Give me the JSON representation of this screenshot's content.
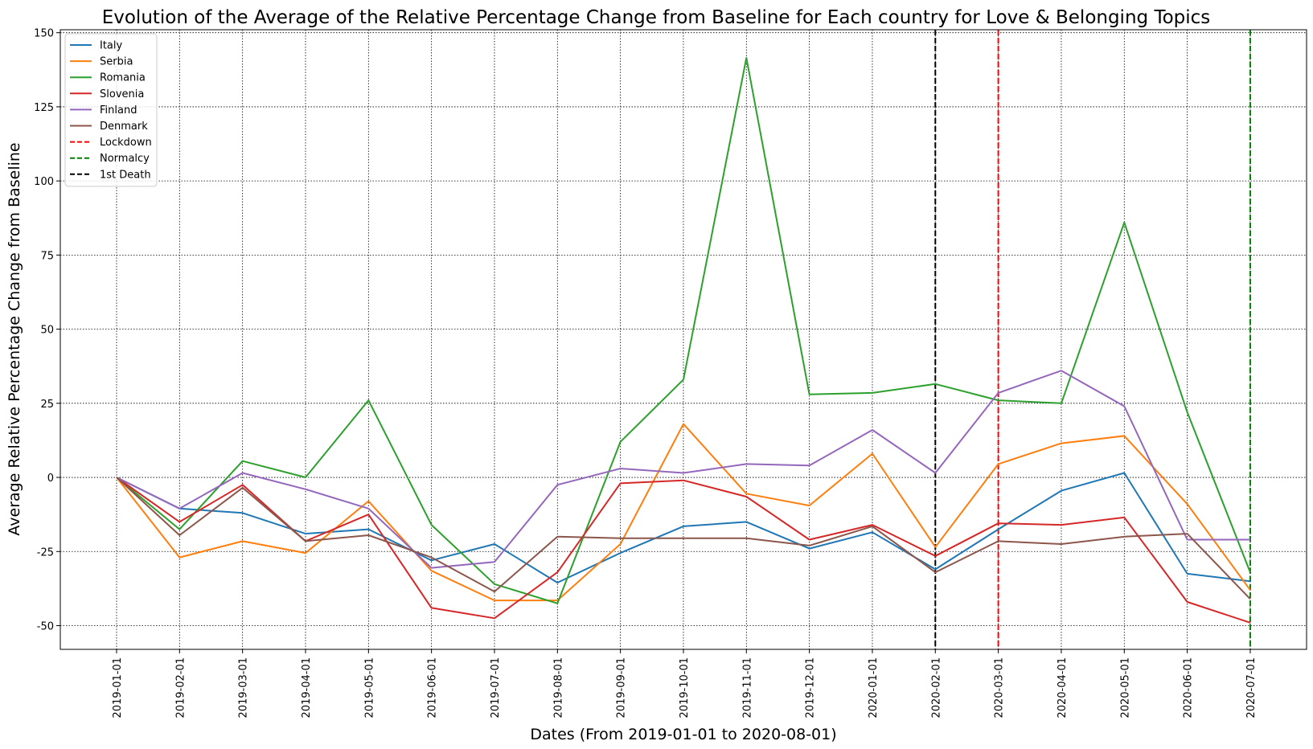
{
  "chart_data": {
    "type": "line",
    "title": "Evolution of the Average of the Relative Percentage Change from Baseline for Each country for Love & Belonging Topics",
    "xlabel": "Dates (From 2019-01-01 to 2020-08-01)",
    "ylabel": "Average Relative Percentage Change from Baseline",
    "ylim": [
      -58,
      151
    ],
    "yticks": [
      -50,
      -25,
      0,
      25,
      50,
      75,
      100,
      125,
      150
    ],
    "grid": true,
    "legend_position": "upper-left",
    "categories": [
      "2019-01-01",
      "2019-02-01",
      "2019-03-01",
      "2019-04-01",
      "2019-05-01",
      "2019-06-01",
      "2019-07-01",
      "2019-08-01",
      "2019-09-01",
      "2019-10-01",
      "2019-11-01",
      "2019-12-01",
      "2020-01-01",
      "2020-02-01",
      "2020-03-01",
      "2020-04-01",
      "2020-05-01",
      "2020-06-01",
      "2020-07-01"
    ],
    "series": [
      {
        "name": "Italy",
        "color": "#1f77b4",
        "values": [
          0,
          -10.5,
          -12,
          -19,
          -17.5,
          -28,
          -22.5,
          -35.5,
          -25.5,
          -16.5,
          -15,
          -24,
          -18.5,
          -31,
          -17.5,
          -4.5,
          1.5,
          -32.5,
          -35
        ]
      },
      {
        "name": "Serbia",
        "color": "#ff7f0e",
        "values": [
          0,
          -27,
          -21.5,
          -25.5,
          -8,
          -31.5,
          -41.5,
          -41.5,
          -22.5,
          18,
          -5.5,
          -9.5,
          8,
          -23.5,
          4.5,
          11.5,
          14,
          -9,
          -38
        ]
      },
      {
        "name": "Romania",
        "color": "#2ca02c",
        "values": [
          0,
          -17.5,
          5.5,
          0,
          26,
          -16,
          -36,
          -42.5,
          12,
          33,
          141.5,
          28,
          28.5,
          31.5,
          26,
          25,
          86,
          22,
          -32
        ]
      },
      {
        "name": "Slovenia",
        "color": "#d62728",
        "values": [
          0,
          -15,
          -2.5,
          -21.5,
          -12.5,
          -44,
          -47.5,
          -32,
          -2,
          -1,
          -6.5,
          -21,
          -16,
          -26.5,
          -15.5,
          -16,
          -13.5,
          -42,
          -49
        ]
      },
      {
        "name": "Finland",
        "color": "#9467bd",
        "values": [
          0,
          -10.5,
          1.5,
          -4,
          -10.5,
          -30.5,
          -28.5,
          -2.5,
          3,
          1.5,
          4.5,
          4,
          16,
          1.5,
          28.5,
          36,
          24,
          -21,
          -21
        ]
      },
      {
        "name": "Denmark",
        "color": "#8c564b",
        "values": [
          0,
          -19.5,
          -3.5,
          -21.5,
          -19.5,
          -27,
          -38.5,
          -20,
          -20.5,
          -20.5,
          -20.5,
          -23,
          -16.5,
          -32,
          -21.5,
          -22.5,
          -20,
          -19,
          -41
        ]
      }
    ],
    "events": [
      {
        "name": "Lockdown",
        "color": "#ff0000",
        "date": "2020-03-01"
      },
      {
        "name": "Normalcy",
        "color": "#008000",
        "date": "2020-07-01"
      },
      {
        "name": "1st Death",
        "color": "#000000",
        "date": "2020-02-01"
      }
    ]
  }
}
